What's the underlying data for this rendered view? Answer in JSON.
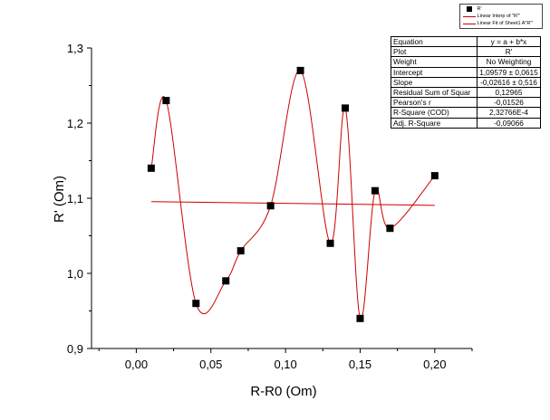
{
  "chart_data": {
    "type": "line",
    "xlabel": "R-R0 (Om)",
    "ylabel": "R' (Om)",
    "xlim": [
      -0.03,
      0.225
    ],
    "ylim": [
      0.9,
      1.3
    ],
    "x_ticks": [
      "0,00",
      "0,05",
      "0,10",
      "0,15",
      "0,20"
    ],
    "x_tick_values": [
      0.0,
      0.05,
      0.1,
      0.15,
      0.2
    ],
    "y_ticks": [
      "0,9",
      "1,0",
      "1,1",
      "1,2",
      "1,3"
    ],
    "y_tick_values": [
      0.9,
      1.0,
      1.1,
      1.2,
      1.3
    ],
    "grid": false,
    "legend_position": "top-right",
    "series": [
      {
        "name": "R'",
        "kind": "scatter",
        "marker": "square",
        "color": "#000000",
        "x": [
          0.01,
          0.02,
          0.04,
          0.06,
          0.07,
          0.09,
          0.11,
          0.13,
          0.14,
          0.15,
          0.16,
          0.17,
          0.2
        ],
        "y": [
          1.14,
          1.23,
          0.96,
          0.99,
          1.03,
          1.09,
          1.27,
          1.04,
          1.22,
          0.94,
          1.11,
          1.06,
          1.13
        ]
      },
      {
        "name": "Linear Interp of \"R'\"",
        "kind": "line",
        "interpolation": "spline",
        "color": "#cc0000"
      },
      {
        "name": "Linear Fit of Sheet1 A\"R'\"",
        "kind": "line",
        "color": "#cc0000",
        "intercept": 1.09579,
        "slope": -0.02616,
        "x_range": [
          0.01,
          0.2
        ]
      }
    ]
  },
  "legend": {
    "items": [
      {
        "label": "R'"
      },
      {
        "label": "Linear Interp of \"R'\""
      },
      {
        "label": "Linear Fit of Sheet1 A\"R'\""
      }
    ]
  },
  "stats_table": {
    "rows": [
      {
        "key": "Equation",
        "value": "y = a + b*x"
      },
      {
        "key": "Plot",
        "value": "R'"
      },
      {
        "key": "Weight",
        "value": "No Weighting"
      },
      {
        "key": "Intercept",
        "value": "1,09579 ± 0,0615"
      },
      {
        "key": "Slope",
        "value": "-0,02616 ± 0,516"
      },
      {
        "key": "Residual Sum of Squar",
        "value": "0,12965"
      },
      {
        "key": "Pearson's r",
        "value": "-0,01526"
      },
      {
        "key": "R-Square (COD)",
        "value": "2,32766E-4"
      },
      {
        "key": "Adj. R-Square",
        "value": "-0,09066"
      }
    ]
  },
  "colors": {
    "axis": "#000000",
    "marker": "#000000",
    "curve": "#cc0000"
  }
}
